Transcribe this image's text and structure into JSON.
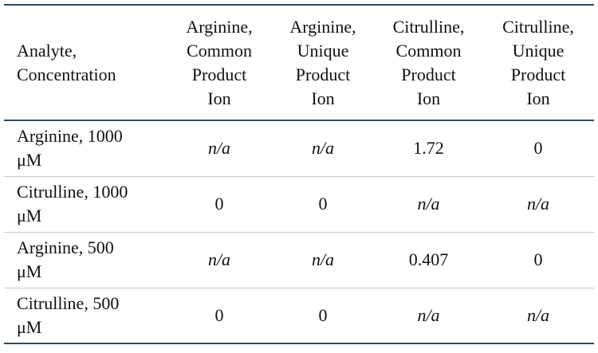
{
  "table": {
    "header": [
      "Analyte,\nConcentration",
      "Arginine,\nCommon\nProduct\nIon",
      "Arginine,\nUnique\nProduct\nIon",
      "Citrulline,\nCommon\nProduct\nIon",
      "Citrulline,\nUnique\nProduct\nIon"
    ],
    "rows": [
      {
        "label": "Arginine, 1000\nμM",
        "cells": [
          {
            "text": "n/a",
            "italic": true
          },
          {
            "text": "n/a",
            "italic": true
          },
          {
            "text": 1.72,
            "italic": false
          },
          {
            "text": 0,
            "italic": false
          }
        ]
      },
      {
        "label": "Citrulline, 1000\nμM",
        "cells": [
          {
            "text": 0,
            "italic": false
          },
          {
            "text": 0,
            "italic": false
          },
          {
            "text": "n/a",
            "italic": true
          },
          {
            "text": "n/a",
            "italic": true
          }
        ]
      },
      {
        "label": "Arginine, 500\nμM",
        "cells": [
          {
            "text": "n/a",
            "italic": true
          },
          {
            "text": "n/a",
            "italic": true
          },
          {
            "text": 0.407,
            "italic": false
          },
          {
            "text": 0,
            "italic": false
          }
        ]
      },
      {
        "label": "Citrulline, 500\nμM",
        "cells": [
          {
            "text": 0,
            "italic": false
          },
          {
            "text": 0,
            "italic": false
          },
          {
            "text": "n/a",
            "italic": true
          },
          {
            "text": "n/a",
            "italic": true
          }
        ]
      }
    ]
  }
}
